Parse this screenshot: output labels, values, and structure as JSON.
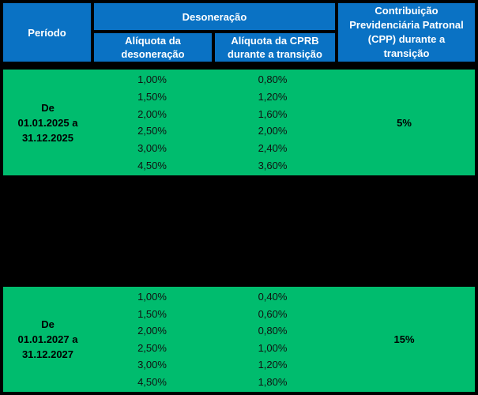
{
  "colors": {
    "header_blue": "#0A72C4",
    "body_green": "#00BC6E",
    "border_black": "#000000",
    "header_text": "#FFFFFF",
    "body_text": "#000000"
  },
  "header": {
    "periodo": "Período",
    "desoneracao": "Desoneração",
    "aliquota_desoneracao": "Alíquota da\ndesoneração",
    "aliquota_cprb": "Alíquota da CPRB\ndurante a transição",
    "cpp": "Contribuição\nPrevidenciária Patronal\n(CPP) durante a\ntransição"
  },
  "sections": [
    {
      "period": "De\n01.01.2025 a\n31.12.2025",
      "aliquota_desoneracao": [
        "1,00%",
        "1,50%",
        "2,00%",
        "2,50%",
        "3,00%",
        "4,50%"
      ],
      "aliquota_cprb": [
        "0,80%",
        "1,20%",
        "1,60%",
        "2,00%",
        "2,40%",
        "3,60%"
      ],
      "cpp": "5%"
    },
    {
      "redacted": true
    },
    {
      "period": "De\n01.01.2027 a\n31.12.2027",
      "aliquota_desoneracao": [
        "1,00%",
        "1,50%",
        "2,00%",
        "2,50%",
        "3,00%",
        "4,50%"
      ],
      "aliquota_cprb": [
        "0,40%",
        "0,60%",
        "0,80%",
        "1,00%",
        "1,20%",
        "1,80%"
      ],
      "cpp": "15%"
    }
  ]
}
